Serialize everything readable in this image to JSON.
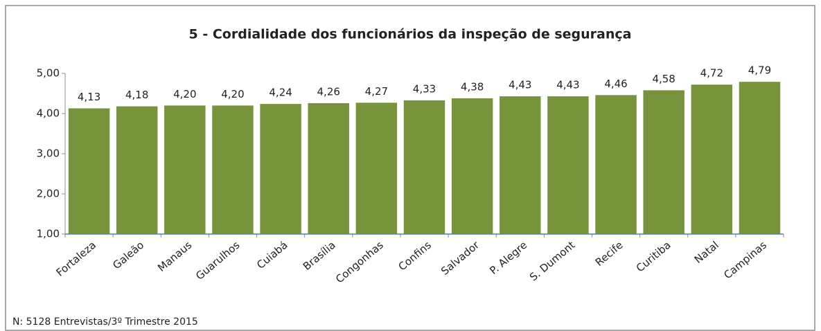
{
  "chart_data": {
    "type": "bar",
    "title": "5 - Cordialidade dos funcionários da inspeção de segurança",
    "categories": [
      "Fortaleza",
      "Galeão",
      "Manaus",
      "Guarulhos",
      "Cuiabá",
      "Brasília",
      "Congonhas",
      "Confins",
      "Salvador",
      "P. Alegre",
      "S. Dumont",
      "Recife",
      "Curitiba",
      "Natal",
      "Campinas"
    ],
    "values": [
      4.13,
      4.18,
      4.2,
      4.2,
      4.24,
      4.26,
      4.27,
      4.33,
      4.38,
      4.43,
      4.43,
      4.46,
      4.58,
      4.72,
      4.79
    ],
    "value_labels": [
      "4,13",
      "4,18",
      "4,20",
      "4,20",
      "4,24",
      "4,26",
      "4,27",
      "4,33",
      "4,38",
      "4,43",
      "4,43",
      "4,46",
      "4,58",
      "4,72",
      "4,79"
    ],
    "color": "#77933c",
    "ylim": [
      1,
      5
    ],
    "yticks": [
      {
        "value": 1,
        "label": "1,00"
      },
      {
        "value": 2,
        "label": "2,00"
      },
      {
        "value": 3,
        "label": "3,00"
      },
      {
        "value": 4,
        "label": "4,00"
      },
      {
        "value": 5,
        "label": "5,00"
      }
    ],
    "grid": false,
    "footnote": "N: 5128 Entrevistas/3º Trimestre 2015"
  }
}
